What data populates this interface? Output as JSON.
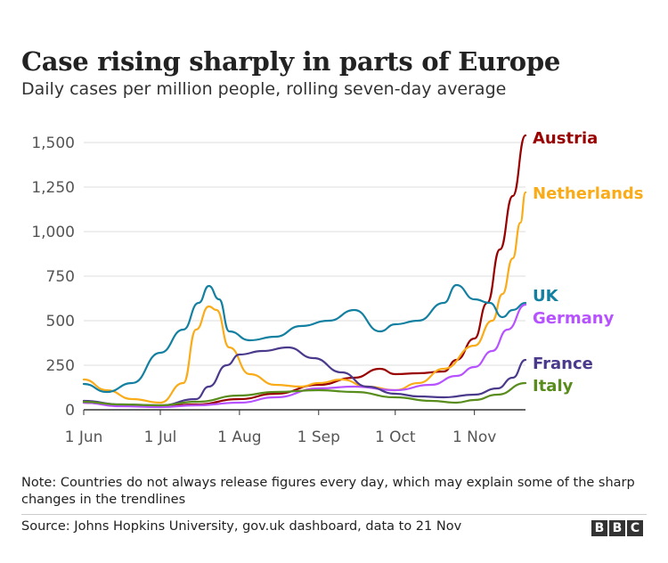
{
  "title": "Case rising sharply in parts of Europe",
  "subtitle": "Daily cases per million people, rolling seven-day average",
  "note": "Note: Countries do not always release figures every day, which may explain some of the sharp changes in the trendlines",
  "source": "Source: Johns Hopkins University, gov.uk dashboard, data to 21 Nov",
  "logo_letters": [
    "B",
    "B",
    "C"
  ],
  "chart_data": {
    "type": "line",
    "title": "Case rising sharply in parts of Europe",
    "subtitle": "Daily cases per million people, rolling seven-day average",
    "xlabel": "",
    "ylabel": "",
    "ylim": [
      0,
      1500
    ],
    "xlim": [
      "2020-06-01",
      "2020-11-21"
    ],
    "y_ticks": [
      0,
      250,
      500,
      750,
      1000,
      1250,
      1500
    ],
    "y_tick_labels": [
      "0",
      "250",
      "500",
      "750",
      "1,000",
      "1,250",
      "1,500"
    ],
    "x_ticks": [
      "2020-06-01",
      "2020-07-01",
      "2020-08-01",
      "2020-09-01",
      "2020-10-01",
      "2020-11-01"
    ],
    "x_tick_labels": [
      "1 Jun",
      "1 Jul",
      "1 Aug",
      "1 Sep",
      "1 Oct",
      "1 Nov"
    ],
    "grid": true,
    "legend": "direct labels at line ends",
    "series": [
      {
        "name": "Austria",
        "color": "#990000",
        "points": [
          [
            "2020-06-01",
            40
          ],
          [
            "2020-06-15",
            25
          ],
          [
            "2020-07-01",
            20
          ],
          [
            "2020-07-15",
            30
          ],
          [
            "2020-08-01",
            60
          ],
          [
            "2020-08-15",
            90
          ],
          [
            "2020-09-01",
            140
          ],
          [
            "2020-09-15",
            180
          ],
          [
            "2020-09-25",
            230
          ],
          [
            "2020-10-01",
            200
          ],
          [
            "2020-10-10",
            205
          ],
          [
            "2020-10-20",
            215
          ],
          [
            "2020-10-25",
            280
          ],
          [
            "2020-11-01",
            400
          ],
          [
            "2020-11-06",
            600
          ],
          [
            "2020-11-11",
            900
          ],
          [
            "2020-11-16",
            1200
          ],
          [
            "2020-11-21",
            1540
          ]
        ]
      },
      {
        "name": "Netherlands",
        "color": "#FAAB18",
        "points": [
          [
            "2020-06-01",
            170
          ],
          [
            "2020-06-10",
            110
          ],
          [
            "2020-06-20",
            60
          ],
          [
            "2020-07-01",
            40
          ],
          [
            "2020-07-10",
            150
          ],
          [
            "2020-07-15",
            450
          ],
          [
            "2020-07-20",
            580
          ],
          [
            "2020-07-23",
            560
          ],
          [
            "2020-07-28",
            350
          ],
          [
            "2020-08-05",
            200
          ],
          [
            "2020-08-15",
            140
          ],
          [
            "2020-08-25",
            130
          ],
          [
            "2020-09-01",
            150
          ],
          [
            "2020-09-10",
            170
          ],
          [
            "2020-09-20",
            130
          ],
          [
            "2020-10-01",
            110
          ],
          [
            "2020-10-10",
            150
          ],
          [
            "2020-10-20",
            230
          ],
          [
            "2020-11-01",
            360
          ],
          [
            "2020-11-08",
            500
          ],
          [
            "2020-11-12",
            650
          ],
          [
            "2020-11-16",
            850
          ],
          [
            "2020-11-19",
            1050
          ],
          [
            "2020-11-21",
            1220
          ]
        ]
      },
      {
        "name": "UK",
        "color": "#1380A1",
        "points": [
          [
            "2020-06-01",
            145
          ],
          [
            "2020-06-10",
            100
          ],
          [
            "2020-06-20",
            150
          ],
          [
            "2020-07-01",
            320
          ],
          [
            "2020-07-10",
            450
          ],
          [
            "2020-07-16",
            600
          ],
          [
            "2020-07-20",
            695
          ],
          [
            "2020-07-24",
            620
          ],
          [
            "2020-07-28",
            440
          ],
          [
            "2020-08-05",
            390
          ],
          [
            "2020-08-15",
            410
          ],
          [
            "2020-08-25",
            470
          ],
          [
            "2020-09-05",
            500
          ],
          [
            "2020-09-15",
            560
          ],
          [
            "2020-09-25",
            440
          ],
          [
            "2020-10-01",
            480
          ],
          [
            "2020-10-10",
            500
          ],
          [
            "2020-10-20",
            600
          ],
          [
            "2020-10-25",
            700
          ],
          [
            "2020-11-01",
            620
          ],
          [
            "2020-11-07",
            600
          ],
          [
            "2020-11-12",
            520
          ],
          [
            "2020-11-16",
            560
          ],
          [
            "2020-11-21",
            600
          ]
        ]
      },
      {
        "name": "Germany",
        "color": "#B652FF",
        "points": [
          [
            "2020-06-01",
            40
          ],
          [
            "2020-06-15",
            20
          ],
          [
            "2020-07-01",
            15
          ],
          [
            "2020-07-15",
            25
          ],
          [
            "2020-08-01",
            40
          ],
          [
            "2020-08-15",
            70
          ],
          [
            "2020-09-01",
            120
          ],
          [
            "2020-09-15",
            130
          ],
          [
            "2020-10-01",
            110
          ],
          [
            "2020-10-15",
            140
          ],
          [
            "2020-10-25",
            190
          ],
          [
            "2020-11-01",
            240
          ],
          [
            "2020-11-08",
            330
          ],
          [
            "2020-11-14",
            450
          ],
          [
            "2020-11-21",
            590
          ]
        ]
      },
      {
        "name": "France",
        "color": "#4B3A8C",
        "points": [
          [
            "2020-06-01",
            50
          ],
          [
            "2020-06-15",
            30
          ],
          [
            "2020-07-01",
            25
          ],
          [
            "2020-07-15",
            60
          ],
          [
            "2020-07-20",
            130
          ],
          [
            "2020-07-27",
            250
          ],
          [
            "2020-08-01",
            310
          ],
          [
            "2020-08-10",
            330
          ],
          [
            "2020-08-20",
            350
          ],
          [
            "2020-08-30",
            290
          ],
          [
            "2020-09-10",
            210
          ],
          [
            "2020-09-20",
            130
          ],
          [
            "2020-10-01",
            90
          ],
          [
            "2020-10-10",
            75
          ],
          [
            "2020-10-20",
            70
          ],
          [
            "2020-11-01",
            85
          ],
          [
            "2020-11-10",
            120
          ],
          [
            "2020-11-16",
            180
          ],
          [
            "2020-11-21",
            280
          ]
        ]
      },
      {
        "name": "Italy",
        "color": "#588C1C",
        "points": [
          [
            "2020-06-01",
            45
          ],
          [
            "2020-06-15",
            30
          ],
          [
            "2020-07-01",
            25
          ],
          [
            "2020-07-15",
            45
          ],
          [
            "2020-08-01",
            80
          ],
          [
            "2020-08-15",
            100
          ],
          [
            "2020-09-01",
            110
          ],
          [
            "2020-09-15",
            100
          ],
          [
            "2020-10-01",
            70
          ],
          [
            "2020-10-15",
            50
          ],
          [
            "2020-10-25",
            40
          ],
          [
            "2020-11-01",
            55
          ],
          [
            "2020-11-10",
            85
          ],
          [
            "2020-11-21",
            150
          ]
        ]
      }
    ]
  }
}
